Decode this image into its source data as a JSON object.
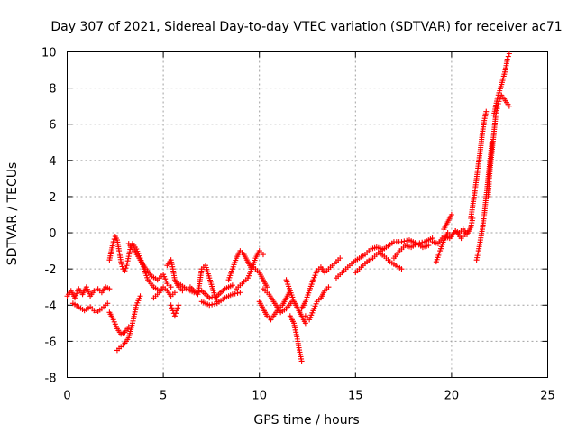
{
  "chart_data": {
    "type": "scatter",
    "title": "Day 307 of 2021, Sidereal Day-to-day VTEC variation (SDTVAR) for receiver ac71",
    "xlabel": "GPS time / hours",
    "ylabel": "SDTVAR / TECUs",
    "xlim": [
      0,
      25
    ],
    "ylim": [
      -8,
      10
    ],
    "x_ticks": [
      0,
      5,
      10,
      15,
      20,
      25
    ],
    "y_ticks": [
      -8,
      -6,
      -4,
      -2,
      0,
      2,
      4,
      6,
      8,
      10
    ],
    "grid": true,
    "marker": "+",
    "color": "#ff0000",
    "series": [
      {
        "name": "SDTVAR",
        "segments": [
          {
            "x": [
              0.0,
              0.2,
              0.4,
              0.6,
              0.8,
              1.0,
              1.2,
              1.4,
              1.6,
              1.8,
              2.0,
              2.2
            ],
            "y": [
              -3.5,
              -3.2,
              -3.6,
              -3.1,
              -3.4,
              -3.0,
              -3.5,
              -3.2,
              -3.1,
              -3.3,
              -3.0,
              -3.1
            ]
          },
          {
            "x": [
              0.3,
              0.6,
              0.9,
              1.2,
              1.5,
              1.8,
              2.1
            ],
            "y": [
              -3.9,
              -4.1,
              -4.3,
              -4.1,
              -4.4,
              -4.2,
              -3.9
            ]
          },
          {
            "x": [
              2.2,
              2.4,
              2.5,
              2.6,
              2.7,
              2.8,
              2.9,
              3.0,
              3.1,
              3.2,
              3.3,
              3.4,
              3.6,
              3.8,
              4.0,
              4.2,
              4.5,
              4.8
            ],
            "y": [
              -1.5,
              -0.5,
              -0.2,
              -0.4,
              -1.0,
              -1.6,
              -2.0,
              -2.1,
              -1.8,
              -1.3,
              -0.8,
              -0.6,
              -0.9,
              -1.4,
              -2.0,
              -2.6,
              -3.0,
              -3.2
            ]
          },
          {
            "x": [
              2.2,
              2.4,
              2.6,
              2.8,
              3.0,
              3.2
            ],
            "y": [
              -4.4,
              -4.8,
              -5.3,
              -5.6,
              -5.5,
              -5.2
            ]
          },
          {
            "x": [
              2.6,
              2.8,
              3.0,
              3.2,
              3.4,
              3.5,
              3.6,
              3.8
            ],
            "y": [
              -6.5,
              -6.3,
              -6.1,
              -5.8,
              -5.0,
              -4.5,
              -4.0,
              -3.5
            ]
          },
          {
            "x": [
              3.2,
              3.5,
              3.8,
              4.1,
              4.4,
              4.7,
              5.0,
              5.2,
              5.4
            ],
            "y": [
              -0.6,
              -1.0,
              -1.5,
              -2.0,
              -2.4,
              -2.6,
              -2.3,
              -2.8,
              -3.0
            ]
          },
          {
            "x": [
              4.5,
              4.8,
              5.0,
              5.2,
              5.4,
              5.6
            ],
            "y": [
              -3.6,
              -3.3,
              -3.0,
              -3.2,
              -3.5,
              -3.3
            ]
          },
          {
            "x": [
              5.2,
              5.4,
              5.5,
              5.6,
              5.8,
              6.0
            ],
            "y": [
              -1.8,
              -1.5,
              -2.0,
              -2.6,
              -3.0,
              -3.2
            ]
          },
          {
            "x": [
              5.4,
              5.5,
              5.6,
              5.7,
              5.8
            ],
            "y": [
              -4.0,
              -4.3,
              -4.6,
              -4.3,
              -4.0
            ]
          },
          {
            "x": [
              5.8,
              6.2,
              6.6,
              7.0,
              7.4,
              7.8,
              8.2,
              8.6
            ],
            "y": [
              -2.8,
              -3.1,
              -3.3,
              -3.2,
              -3.6,
              -3.5,
              -3.1,
              -2.9
            ]
          },
          {
            "x": [
              6.4,
              6.8,
              7.0,
              7.2,
              7.4,
              7.6,
              7.8
            ],
            "y": [
              -3.0,
              -3.4,
              -2.0,
              -1.8,
              -2.5,
              -3.2,
              -3.8
            ]
          },
          {
            "x": [
              7.0,
              7.4,
              7.8,
              8.2,
              8.6,
              9.0
            ],
            "y": [
              -3.8,
              -4.0,
              -3.9,
              -3.6,
              -3.4,
              -3.3
            ]
          },
          {
            "x": [
              8.4,
              8.6,
              8.8,
              9.0,
              9.2,
              9.4,
              9.6
            ],
            "y": [
              -2.6,
              -2.0,
              -1.4,
              -1.0,
              -1.2,
              -1.6,
              -2.0
            ]
          },
          {
            "x": [
              8.8,
              9.1,
              9.4,
              9.6,
              9.8,
              10.0,
              10.2
            ],
            "y": [
              -3.1,
              -2.8,
              -2.5,
              -2.0,
              -1.4,
              -1.0,
              -1.2
            ]
          },
          {
            "x": [
              9.6,
              9.8,
              10.0,
              10.2,
              10.4
            ],
            "y": [
              -1.8,
              -2.0,
              -2.2,
              -2.6,
              -3.0
            ]
          },
          {
            "x": [
              10.0,
              10.2,
              10.4,
              10.6,
              10.8,
              11.0,
              11.2,
              11.4,
              11.6
            ],
            "y": [
              -3.8,
              -4.2,
              -4.6,
              -4.8,
              -4.5,
              -4.2,
              -4.0,
              -3.6,
              -3.2
            ]
          },
          {
            "x": [
              10.2,
              10.5,
              10.8,
              11.1,
              11.4,
              11.7
            ],
            "y": [
              -3.1,
              -3.4,
              -3.9,
              -4.4,
              -4.2,
              -3.8
            ]
          },
          {
            "x": [
              11.6,
              11.8,
              11.9,
              12.0,
              12.1,
              12.2
            ],
            "y": [
              -4.6,
              -5.0,
              -5.5,
              -6.0,
              -6.6,
              -7.1
            ]
          },
          {
            "x": [
              11.4,
              11.6,
              11.8,
              12.0,
              12.2,
              12.4
            ],
            "y": [
              -2.6,
              -3.2,
              -3.8,
              -4.2,
              -4.6,
              -5.0
            ]
          },
          {
            "x": [
              12.2,
              12.4,
              12.6,
              12.8,
              13.0,
              13.2,
              13.4,
              13.6,
              13.8,
              14.0,
              14.2
            ],
            "y": [
              -4.2,
              -3.8,
              -3.2,
              -2.6,
              -2.1,
              -1.9,
              -2.2,
              -2.0,
              -1.8,
              -1.6,
              -1.4
            ]
          },
          {
            "x": [
              12.4,
              12.6,
              12.8,
              13.0,
              13.2,
              13.4,
              13.6
            ],
            "y": [
              -4.6,
              -4.8,
              -4.3,
              -3.8,
              -3.6,
              -3.2,
              -3.0
            ]
          },
          {
            "x": [
              14.0,
              14.3,
              14.6,
              14.9,
              15.2,
              15.5,
              15.8,
              16.1,
              16.4
            ],
            "y": [
              -2.5,
              -2.2,
              -1.9,
              -1.6,
              -1.4,
              -1.2,
              -0.9,
              -0.8,
              -0.9
            ]
          },
          {
            "x": [
              15.0,
              15.3,
              15.6,
              15.9,
              16.2,
              16.5,
              16.8,
              17.1,
              17.4
            ],
            "y": [
              -2.2,
              -1.9,
              -1.6,
              -1.4,
              -1.1,
              -1.3,
              -1.6,
              -1.8,
              -2.0
            ]
          },
          {
            "x": [
              16.2,
              16.6,
              17.0,
              17.4,
              17.8,
              18.2,
              18.6,
              19.0
            ],
            "y": [
              -1.1,
              -0.8,
              -0.5,
              -0.5,
              -0.4,
              -0.6,
              -0.5,
              -0.3
            ]
          },
          {
            "x": [
              17.0,
              17.3,
              17.6,
              17.9,
              18.2,
              18.5,
              18.8
            ],
            "y": [
              -1.4,
              -1.0,
              -0.7,
              -0.8,
              -0.6,
              -0.8,
              -0.7
            ]
          },
          {
            "x": [
              19.2,
              19.4,
              19.6,
              19.8,
              20.0,
              20.2,
              20.4,
              20.6,
              20.8,
              21.0,
              21.1
            ],
            "y": [
              -1.6,
              -1.0,
              -0.4,
              0.0,
              -0.2,
              0.1,
              0.0,
              0.2,
              -0.1,
              0.3,
              0.8
            ]
          },
          {
            "x": [
              19.0,
              19.3,
              19.6,
              19.9,
              20.2,
              20.5,
              20.8
            ],
            "y": [
              -0.5,
              -0.6,
              -0.2,
              -0.3,
              0.1,
              -0.3,
              0.0
            ]
          },
          {
            "x": [
              19.6,
              19.8,
              20.0
            ],
            "y": [
              0.2,
              0.6,
              1.0
            ]
          },
          {
            "x": [
              21.0,
              21.1,
              21.2,
              21.3,
              21.4,
              21.5,
              21.6,
              21.7,
              21.8
            ],
            "y": [
              0.8,
              1.5,
              2.2,
              3.0,
              3.8,
              4.6,
              5.5,
              6.2,
              6.7
            ]
          },
          {
            "x": [
              21.3,
              21.4,
              21.5,
              21.6,
              21.7,
              21.8,
              21.9,
              22.0,
              22.1
            ],
            "y": [
              -1.5,
              -1.0,
              -0.4,
              0.2,
              1.0,
              2.0,
              3.0,
              4.0,
              5.0
            ]
          },
          {
            "x": [
              21.9,
              22.0,
              22.1,
              22.2,
              22.3,
              22.4,
              22.5,
              22.6,
              22.8,
              23.0
            ],
            "y": [
              2.0,
              3.5,
              4.5,
              5.5,
              6.5,
              7.0,
              7.4,
              7.6,
              7.3,
              7.0
            ]
          },
          {
            "x": [
              22.2,
              22.4,
              22.6,
              22.8,
              22.9,
              23.0
            ],
            "y": [
              6.5,
              7.5,
              8.2,
              9.0,
              9.6,
              9.9
            ]
          }
        ]
      }
    ]
  }
}
